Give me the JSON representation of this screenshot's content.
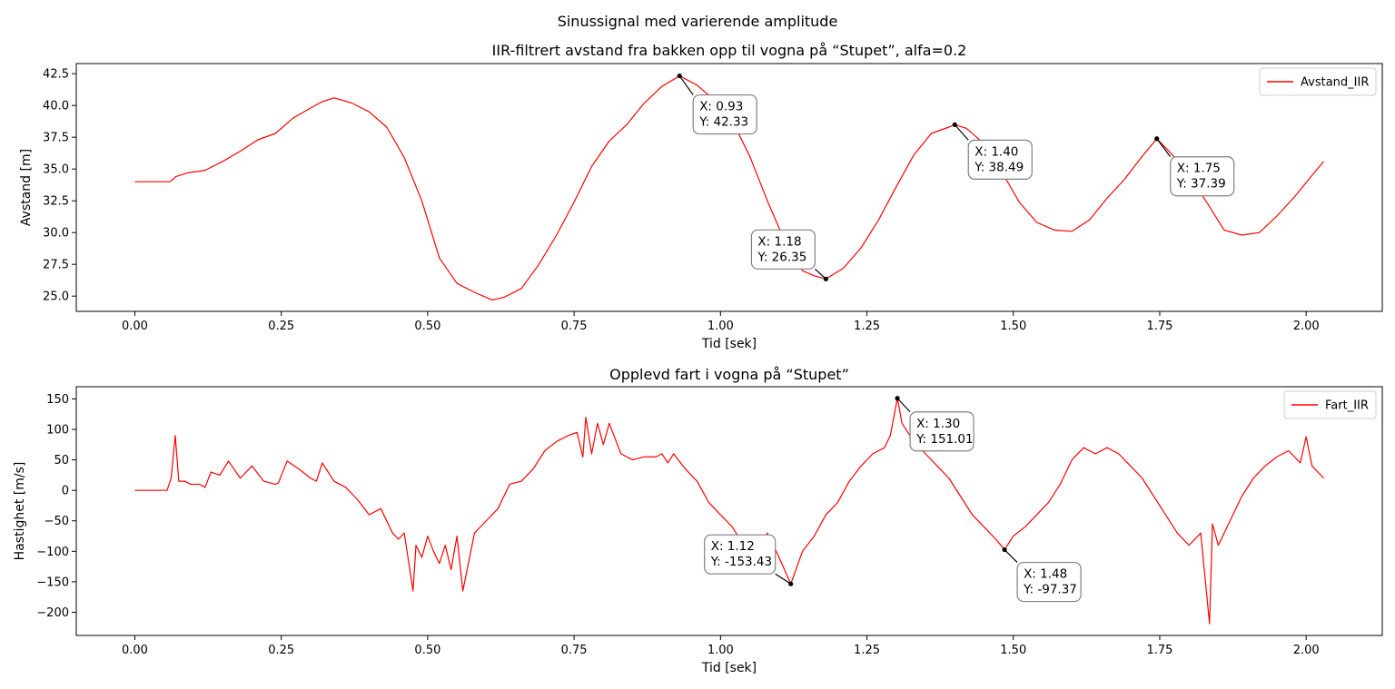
{
  "figure_title": "Sinussignal med varierende amplitude",
  "colors": {
    "line": "#ff0000",
    "annotation_box": "#808080",
    "marker": "#000000"
  },
  "chart_data": [
    {
      "type": "line",
      "title": "IIR-filtrert avstand fra bakken opp til vogna på “Stupet”, alfa=0.2",
      "xlabel": "Tid [sek]",
      "ylabel": "Avstand [m]",
      "xlim": [
        -0.1,
        2.13
      ],
      "ylim": [
        23.8,
        43.3
      ],
      "xticks": [
        0.0,
        0.25,
        0.5,
        0.75,
        1.0,
        1.25,
        1.5,
        1.75,
        2.0
      ],
      "xtick_labels": [
        "0.00",
        "0.25",
        "0.50",
        "0.75",
        "1.00",
        "1.25",
        "1.50",
        "1.75",
        "2.00"
      ],
      "yticks": [
        25.0,
        27.5,
        30.0,
        32.5,
        35.0,
        37.5,
        40.0,
        42.5
      ],
      "ytick_labels": [
        "25.0",
        "27.5",
        "30.0",
        "32.5",
        "35.0",
        "37.5",
        "40.0",
        "42.5"
      ],
      "grid": false,
      "legend_position": "top-right",
      "series": [
        {
          "name": "Avstand_IIR",
          "x": [
            0.0,
            0.025,
            0.05,
            0.06,
            0.07,
            0.09,
            0.12,
            0.15,
            0.18,
            0.21,
            0.24,
            0.27,
            0.3,
            0.32,
            0.34,
            0.37,
            0.4,
            0.43,
            0.46,
            0.49,
            0.52,
            0.55,
            0.58,
            0.61,
            0.63,
            0.66,
            0.69,
            0.72,
            0.75,
            0.78,
            0.81,
            0.84,
            0.87,
            0.9,
            0.93,
            0.96,
            0.99,
            1.02,
            1.05,
            1.08,
            1.11,
            1.14,
            1.16,
            1.18,
            1.21,
            1.24,
            1.27,
            1.3,
            1.33,
            1.36,
            1.39,
            1.4,
            1.42,
            1.45,
            1.48,
            1.51,
            1.54,
            1.57,
            1.6,
            1.63,
            1.66,
            1.69,
            1.72,
            1.745,
            1.77,
            1.8,
            1.83,
            1.86,
            1.89,
            1.92,
            1.95,
            1.98,
            2.01,
            2.03
          ],
          "y": [
            34.0,
            34.0,
            34.0,
            34.0,
            34.4,
            34.7,
            34.9,
            35.6,
            36.4,
            37.3,
            37.8,
            39.0,
            39.8,
            40.3,
            40.6,
            40.2,
            39.5,
            38.3,
            35.9,
            32.5,
            28.0,
            26.0,
            25.3,
            24.7,
            24.9,
            25.6,
            27.5,
            29.8,
            32.4,
            35.2,
            37.2,
            38.5,
            40.2,
            41.5,
            42.33,
            41.6,
            40.4,
            38.8,
            36.0,
            32.5,
            29.3,
            27.0,
            26.6,
            26.35,
            27.2,
            28.8,
            31.0,
            33.6,
            36.1,
            37.8,
            38.3,
            38.49,
            38.2,
            37.0,
            34.8,
            32.4,
            30.8,
            30.2,
            30.1,
            31.0,
            32.7,
            34.2,
            36.0,
            37.39,
            36.2,
            34.5,
            32.4,
            30.2,
            29.8,
            30.0,
            31.3,
            32.8,
            34.5,
            35.6
          ]
        }
      ],
      "annotations": [
        {
          "x": 0.93,
          "y": 42.33,
          "text_x": "X: 0.93",
          "text_y": "Y: 42.33"
        },
        {
          "x": 1.18,
          "y": 26.35,
          "text_x": "X: 1.18",
          "text_y": "Y: 26.35"
        },
        {
          "x": 1.4,
          "y": 38.49,
          "text_x": "X: 1.40",
          "text_y": "Y: 38.49"
        },
        {
          "x": 1.745,
          "y": 37.39,
          "text_x": "X: 1.75",
          "text_y": "Y: 37.39"
        }
      ]
    },
    {
      "type": "line",
      "title": "Opplevd fart i vogna på “Stupet”",
      "xlabel": "Tid [sek]",
      "ylabel": "Hastighet [m/s]",
      "xlim": [
        -0.1,
        2.13
      ],
      "ylim": [
        -238,
        170
      ],
      "xticks": [
        0.0,
        0.25,
        0.5,
        0.75,
        1.0,
        1.25,
        1.5,
        1.75,
        2.0
      ],
      "xtick_labels": [
        "0.00",
        "0.25",
        "0.50",
        "0.75",
        "1.00",
        "1.25",
        "1.50",
        "1.75",
        "2.00"
      ],
      "yticks": [
        -200,
        -150,
        -100,
        -50,
        0,
        50,
        100,
        150
      ],
      "ytick_labels": [
        "−200",
        "−150",
        "−100",
        "−50",
        "0",
        "50",
        "100",
        "150"
      ],
      "grid": false,
      "legend_position": "top-right",
      "series": [
        {
          "name": "Fart_IIR",
          "x": [
            0.0,
            0.02,
            0.04,
            0.055,
            0.062,
            0.069,
            0.075,
            0.085,
            0.095,
            0.11,
            0.12,
            0.13,
            0.145,
            0.16,
            0.18,
            0.2,
            0.22,
            0.24,
            0.245,
            0.26,
            0.28,
            0.3,
            0.31,
            0.32,
            0.34,
            0.36,
            0.38,
            0.4,
            0.42,
            0.44,
            0.45,
            0.46,
            0.475,
            0.48,
            0.49,
            0.5,
            0.51,
            0.52,
            0.53,
            0.54,
            0.55,
            0.56,
            0.58,
            0.6,
            0.62,
            0.64,
            0.66,
            0.68,
            0.7,
            0.72,
            0.74,
            0.755,
            0.765,
            0.77,
            0.78,
            0.79,
            0.8,
            0.81,
            0.83,
            0.85,
            0.87,
            0.89,
            0.9,
            0.91,
            0.92,
            0.94,
            0.96,
            0.98,
            1.0,
            1.02,
            1.04,
            1.06,
            1.08,
            1.1,
            1.12,
            1.14,
            1.16,
            1.18,
            1.2,
            1.22,
            1.24,
            1.26,
            1.28,
            1.29,
            1.302,
            1.31,
            1.33,
            1.35,
            1.37,
            1.39,
            1.41,
            1.43,
            1.45,
            1.47,
            1.485,
            1.5,
            1.52,
            1.54,
            1.56,
            1.58,
            1.6,
            1.62,
            1.64,
            1.66,
            1.68,
            1.7,
            1.72,
            1.74,
            1.76,
            1.78,
            1.8,
            1.82,
            1.835,
            1.84,
            1.85,
            1.87,
            1.89,
            1.91,
            1.93,
            1.95,
            1.97,
            1.99,
            2.0,
            2.01,
            2.03
          ],
          "y": [
            0,
            0,
            0,
            0,
            20,
            90,
            15,
            15,
            10,
            10,
            5,
            30,
            25,
            48,
            20,
            40,
            15,
            10,
            12,
            48,
            35,
            20,
            15,
            45,
            15,
            5,
            -15,
            -40,
            -30,
            -70,
            -80,
            -70,
            -165,
            -90,
            -110,
            -75,
            -100,
            -120,
            -90,
            -130,
            -75,
            -165,
            -70,
            -50,
            -30,
            10,
            15,
            35,
            65,
            80,
            90,
            95,
            55,
            120,
            60,
            110,
            75,
            110,
            60,
            50,
            55,
            55,
            60,
            45,
            60,
            35,
            15,
            -20,
            -40,
            -60,
            -90,
            -120,
            -70,
            -110,
            -153.43,
            -100,
            -75,
            -40,
            -20,
            15,
            40,
            60,
            70,
            90,
            151.01,
            110,
            80,
            60,
            40,
            20,
            -10,
            -40,
            -60,
            -80,
            -97.37,
            -75,
            -60,
            -40,
            -20,
            10,
            50,
            70,
            60,
            70,
            60,
            40,
            20,
            -10,
            -40,
            -70,
            -90,
            -70,
            -219,
            -55,
            -90,
            -50,
            -10,
            20,
            40,
            55,
            65,
            45,
            88,
            40,
            20
          ]
        }
      ],
      "annotations": [
        {
          "x": 1.12,
          "y": -153.43,
          "text_x": "X: 1.12",
          "text_y": "Y: -153.43"
        },
        {
          "x": 1.302,
          "y": 151.01,
          "text_x": "X: 1.30",
          "text_y": "Y: 151.01"
        },
        {
          "x": 1.485,
          "y": -97.37,
          "text_x": "X: 1.48",
          "text_y": "Y: -97.37"
        }
      ]
    }
  ]
}
